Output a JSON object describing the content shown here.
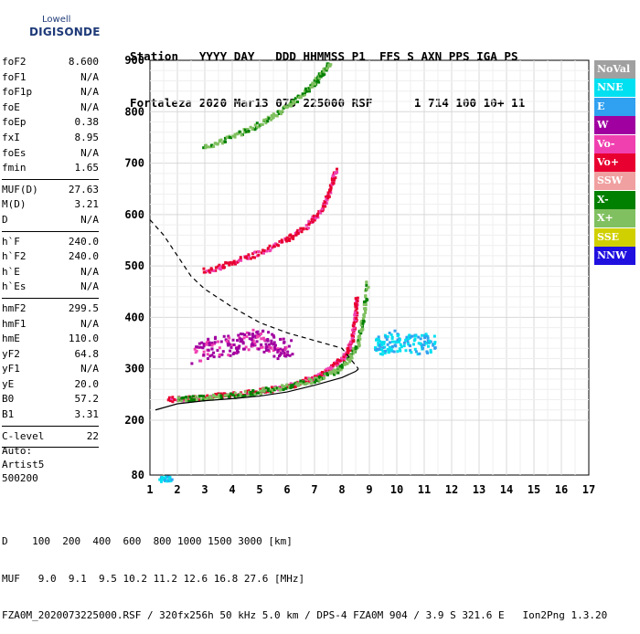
{
  "logo": {
    "line1": "Lowell",
    "line2": "DIGISONDE"
  },
  "header": {
    "line1": "Station   YYYY DAY   DDD HHMMSS P1  FFS S AXN PPS IGA PS",
    "line2": "Fortaleza 2020 Mar13 073 225000 RSF      1 714 100 10+ 11"
  },
  "params": {
    "group1": [
      {
        "label": "foF2",
        "value": "8.600"
      },
      {
        "label": "foF1",
        "value": "N/A"
      },
      {
        "label": "foF1p",
        "value": "N/A"
      },
      {
        "label": "foE",
        "value": "N/A"
      },
      {
        "label": "foEp",
        "value": "0.38"
      },
      {
        "label": "fxI",
        "value": "8.95"
      },
      {
        "label": "foEs",
        "value": "N/A"
      },
      {
        "label": "fmin",
        "value": "1.65"
      }
    ],
    "group2": [
      {
        "label": "MUF(D)",
        "value": "27.63"
      },
      {
        "label": "M(D)",
        "value": "3.21"
      },
      {
        "label": "D",
        "value": "N/A"
      }
    ],
    "group3": [
      {
        "label": "h`F",
        "value": "240.0"
      },
      {
        "label": "h`F2",
        "value": "240.0"
      },
      {
        "label": "h`E",
        "value": "N/A"
      },
      {
        "label": "h`Es",
        "value": "N/A"
      }
    ],
    "group4": [
      {
        "label": "hmF2",
        "value": "299.5"
      },
      {
        "label": "hmF1",
        "value": "N/A"
      },
      {
        "label": "hmE",
        "value": "110.0"
      },
      {
        "label": "yF2",
        "value": "64.8"
      },
      {
        "label": "yF1",
        "value": "N/A"
      },
      {
        "label": "yE",
        "value": "20.0"
      },
      {
        "label": "B0",
        "value": "57.2"
      },
      {
        "label": "B1",
        "value": "3.31"
      }
    ],
    "group5": [
      {
        "label": "C-level",
        "value": "22"
      }
    ]
  },
  "auto": {
    "line1": "Auto:",
    "line2": "Artist5",
    "line3": "500200"
  },
  "footer": {
    "line1": "D    100  200  400  600  800 1000 1500 3000 [km]",
    "line2": "MUF   9.0  9.1  9.5 10.2 11.2 12.6 16.8 27.6 [MHz]",
    "line3": "FZA0M_2020073225000.RSF / 320fx256h 50 kHz 5.0 km / DPS-4 FZA0M 904 / 3.9 S 321.6 E   Ion2Png 1.3.20"
  },
  "legend": [
    {
      "label": "NoVal",
      "color": "#a0a0a0"
    },
    {
      "label": "NNE",
      "color": "#00e0f0"
    },
    {
      "label": "E",
      "color": "#30a0f0"
    },
    {
      "label": "W",
      "color": "#a000a0"
    },
    {
      "label": "Vo-",
      "color": "#f040b0"
    },
    {
      "label": "Vo+",
      "color": "#e80030"
    },
    {
      "label": "SSW",
      "color": "#f0a0a0"
    },
    {
      "label": "X-",
      "color": "#008000"
    },
    {
      "label": "X+",
      "color": "#80c060"
    },
    {
      "label": "SSE",
      "color": "#d0d000"
    },
    {
      "label": "NNW",
      "color": "#2010e0"
    }
  ],
  "chart_data": {
    "type": "scatter",
    "x_ticks": [
      "1",
      "2",
      "3",
      "4",
      "5",
      "6",
      "7",
      "8",
      "9",
      "10",
      "11",
      "12",
      "13",
      "14",
      "15",
      "16",
      "17"
    ],
    "y_ticks": [
      "80",
      "200",
      "300",
      "400",
      "500",
      "600",
      "700",
      "800",
      "900"
    ],
    "xlim": [
      1,
      17
    ],
    "ylim": [
      80,
      900
    ],
    "xlabel": "",
    "ylabel": "",
    "grid": true,
    "legend_position": "right",
    "series": [
      {
        "name": "O-trace F2 (Vo+/Vo-)",
        "color_key": "Vo+",
        "x": [
          1.7,
          2.5,
          3.5,
          4.5,
          5.5,
          6.5,
          7.3,
          7.8,
          8.2,
          8.4,
          8.5,
          8.55
        ],
        "y": [
          240,
          242,
          247,
          252,
          260,
          272,
          290,
          310,
          330,
          360,
          400,
          440
        ]
      },
      {
        "name": "X-trace F2 (X-/X+)",
        "color_key": "X+",
        "x": [
          2.0,
          3.0,
          4.0,
          5.0,
          6.0,
          7.0,
          7.8,
          8.3,
          8.6,
          8.8,
          8.95
        ],
        "y": [
          240,
          243,
          248,
          255,
          265,
          278,
          295,
          320,
          350,
          400,
          470
        ]
      },
      {
        "name": "2nd multiple (2F)",
        "color_key": "Vo+",
        "x": [
          3.0,
          4.0,
          5.0,
          6.0,
          6.8,
          7.3,
          7.6,
          7.8
        ],
        "y": [
          490,
          505,
          525,
          550,
          580,
          610,
          650,
          690
        ]
      },
      {
        "name": "3rd multiple (3F)",
        "color_key": "X+",
        "x": [
          3.0,
          4.0,
          5.0,
          5.8,
          6.5,
          7.0,
          7.3,
          7.6
        ],
        "y": [
          730,
          750,
          775,
          800,
          830,
          855,
          875,
          895
        ]
      },
      {
        "name": "Oblique/spread echoes (W)",
        "color_key": "W",
        "x": [
          2.7,
          3.2,
          3.8,
          4.3,
          4.8,
          5.2,
          5.7,
          6.1
        ],
        "y": [
          330,
          340,
          345,
          350,
          360,
          355,
          340,
          335
        ]
      },
      {
        "name": "Spread F beyond foF2 (NNE)",
        "color_key": "NNE",
        "x": [
          9.2,
          9.6,
          10.0,
          10.5,
          11.0,
          11.4
        ],
        "y": [
          350,
          345,
          355,
          350,
          345,
          352
        ]
      },
      {
        "name": "Low-frequency echoes",
        "color_key": "NNE",
        "x": [
          1.4,
          1.8
        ],
        "y": [
          85,
          85
        ]
      }
    ],
    "profile_curve": {
      "x": [
        1.2,
        2,
        3,
        4,
        5,
        6,
        7,
        8,
        8.5,
        8.6
      ],
      "y": [
        220,
        232,
        238,
        242,
        247,
        255,
        268,
        283,
        295,
        299.5
      ]
    },
    "muf_curve": {
      "x": [
        1,
        1.5,
        2,
        2.5,
        3,
        4,
        5,
        6,
        7,
        8,
        8.6
      ],
      "y": [
        590,
        560,
        520,
        480,
        455,
        420,
        390,
        370,
        355,
        340,
        300
      ]
    }
  }
}
